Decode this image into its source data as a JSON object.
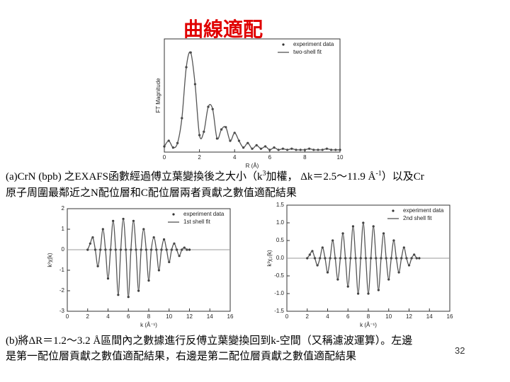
{
  "title": "曲線適配",
  "chart_data": [
    {
      "type": "line",
      "xlabel": "R (Å)",
      "ylabel": "FT Magnitude",
      "xlim": [
        0,
        10
      ],
      "xticks": [
        0,
        2,
        4,
        6,
        8,
        10
      ],
      "ylim": [
        0,
        1
      ],
      "legend": "upper right",
      "x": [
        0,
        0.25,
        0.5,
        0.75,
        1,
        1.25,
        1.5,
        1.75,
        2,
        2.25,
        2.5,
        2.75,
        3,
        3.25,
        3.5,
        3.75,
        4,
        4.25,
        4.5,
        4.75,
        5,
        5.25,
        5.5,
        5.75,
        6,
        6.25,
        6.5,
        6.75,
        7,
        7.25,
        7.5,
        7.75,
        8,
        8.25,
        8.5,
        8.75,
        9,
        9.25,
        9.5,
        9.75,
        10
      ],
      "series": [
        {
          "name": "experiment data",
          "style": "markers",
          "color": "#333333",
          "values": [
            0.05,
            0.1,
            0.04,
            0.08,
            0.3,
            0.75,
            0.88,
            0.6,
            0.15,
            0.18,
            0.4,
            0.38,
            0.12,
            0.2,
            0.22,
            0.1,
            0.17,
            0.1,
            0.04,
            0.08,
            0.03,
            0.06,
            0.03,
            0.05,
            0.02,
            0.04,
            0.02,
            0.03,
            0.02,
            0.03,
            0.02,
            0.02,
            0.02,
            0.03,
            0.02,
            0.02,
            0.02,
            0.03,
            0.02,
            0.02,
            0.02
          ]
        },
        {
          "name": "two-shell fit",
          "style": "line",
          "color": "#555555",
          "values": [
            0.05,
            0.1,
            0.04,
            0.08,
            0.3,
            0.75,
            0.88,
            0.6,
            0.15,
            0.18,
            0.4,
            0.38,
            0.12,
            0.2,
            0.22,
            0.1,
            0.17,
            0.1,
            0.04,
            0.08,
            0.03,
            0.06,
            0.03,
            0.05,
            0.02,
            0.04,
            0.02,
            0.03,
            0.02,
            0.03,
            0.02,
            0.02,
            0.02,
            0.03,
            0.02,
            0.02,
            0.02,
            0.03,
            0.02,
            0.02,
            0.02
          ]
        }
      ]
    },
    {
      "type": "line",
      "xlabel": "k (Å⁻¹)",
      "ylabel": "k³χ(k)",
      "xlim": [
        0,
        16
      ],
      "xticks": [
        0,
        2,
        4,
        6,
        8,
        10,
        12,
        14,
        16
      ],
      "ylim": [
        -3,
        2
      ],
      "yticks": [
        -3,
        -2,
        -1,
        0,
        1,
        2
      ],
      "legend": "upper right",
      "x": [
        2,
        2.25,
        2.5,
        2.75,
        3,
        3.25,
        3.5,
        3.75,
        4,
        4.25,
        4.5,
        4.75,
        5,
        5.25,
        5.5,
        5.75,
        6,
        6.25,
        6.5,
        6.75,
        7,
        7.25,
        7.5,
        7.75,
        8,
        8.25,
        8.5,
        8.75,
        9,
        9.25,
        9.5,
        9.75,
        10,
        10.25,
        10.5,
        10.75,
        11,
        11.25,
        11.5,
        11.75,
        12
      ],
      "series": [
        {
          "name": "experiment data",
          "style": "markers",
          "color": "#333333",
          "values": [
            0,
            0.3,
            0.6,
            0,
            -0.8,
            0,
            1.0,
            0,
            -1.4,
            0,
            1.4,
            0,
            -2.2,
            0,
            1.5,
            0,
            -2.3,
            0,
            1.4,
            0,
            -2.0,
            0,
            1.0,
            0,
            -1.5,
            0,
            0.6,
            0,
            -1.0,
            0,
            0.5,
            0,
            -0.6,
            0,
            0.3,
            0,
            -0.3,
            0,
            0.1,
            0,
            0
          ]
        },
        {
          "name": "1st shell fit",
          "style": "line",
          "color": "#555555",
          "values": [
            0,
            0.3,
            0.6,
            0,
            -0.8,
            0,
            1.0,
            0,
            -1.4,
            0,
            1.4,
            0,
            -2.2,
            0,
            1.5,
            0,
            -2.3,
            0,
            1.4,
            0,
            -2.0,
            0,
            1.0,
            0,
            -1.5,
            0,
            0.6,
            0,
            -1.0,
            0,
            0.5,
            0,
            -0.6,
            0,
            0.3,
            0,
            -0.3,
            0,
            0.1,
            0,
            0
          ]
        }
      ]
    },
    {
      "type": "line",
      "xlabel": "k (Å⁻¹)",
      "ylabel": "k³χ₂(k)",
      "xlim": [
        0,
        16
      ],
      "xticks": [
        0,
        2,
        4,
        6,
        8,
        10,
        12,
        14,
        16
      ],
      "ylim": [
        -1.5,
        1.5
      ],
      "yticks": [
        -1.5,
        {
          "value": -1,
          "label": "-1.0"
        },
        -0.5,
        {
          "value": 0,
          "label": "0.0"
        },
        0.5,
        {
          "value": 1,
          "label": "1.0"
        },
        1.5
      ],
      "legend": "upper right",
      "x": [
        2,
        2.25,
        2.5,
        2.75,
        3,
        3.25,
        3.5,
        3.75,
        4,
        4.25,
        4.5,
        4.75,
        5,
        5.25,
        5.5,
        5.75,
        6,
        6.25,
        6.5,
        6.75,
        7,
        7.25,
        7.5,
        7.75,
        8,
        8.25,
        8.5,
        8.75,
        9,
        9.25,
        9.5,
        9.75,
        10,
        10.25,
        10.5,
        10.75,
        11,
        11.25,
        11.5,
        11.75,
        12,
        12.25,
        12.5,
        12.75,
        13
      ],
      "series": [
        {
          "name": "experiment data",
          "style": "markers",
          "color": "#333333",
          "values": [
            0,
            0.1,
            0.2,
            0,
            -0.2,
            0,
            0.3,
            0,
            -0.4,
            0,
            0.5,
            0,
            -0.6,
            0,
            0.7,
            0,
            -0.8,
            0,
            0.9,
            0,
            -1.0,
            0,
            1.0,
            0,
            -1.0,
            0,
            0.9,
            0,
            -0.9,
            0,
            0.7,
            0,
            -0.6,
            0,
            0.5,
            0,
            -0.4,
            0,
            0.3,
            0,
            -0.2,
            0,
            0.1,
            0,
            0
          ]
        },
        {
          "name": "2nd shell fit",
          "style": "line",
          "color": "#555555",
          "values": [
            0,
            0.1,
            0.2,
            0,
            -0.2,
            0,
            0.3,
            0,
            -0.4,
            0,
            0.5,
            0,
            -0.6,
            0,
            0.7,
            0,
            -0.8,
            0,
            0.9,
            0,
            -1.0,
            0,
            1.0,
            0,
            -1.0,
            0,
            0.9,
            0,
            -0.9,
            0,
            0.7,
            0,
            -0.6,
            0,
            0.5,
            0,
            -0.4,
            0,
            0.3,
            0,
            -0.2,
            0,
            0.1,
            0,
            0
          ]
        }
      ]
    }
  ],
  "caption_a": {
    "line1": [
      "(a)CrN (bpb) 之EXAFS函數經過傅立葉變換後之大小（k",
      "3",
      "加權， Δk＝2.5～11.9 Å",
      "-1",
      "）以及Cr"
    ],
    "line2": "原子周圍最鄰近之N配位層和C配位層兩者貢獻之數值適配結果"
  },
  "caption_b": {
    "line1": "(b)將ΔR＝1.2～3.2 Å區間內之數據進行反傅立葉變換回到k-空間（又稱濾波運算）。左邊",
    "line2": "是第一配位層貢獻之數值適配結果，右邊是第二配位層貢獻之數值適配結果"
  },
  "page_number": "32"
}
